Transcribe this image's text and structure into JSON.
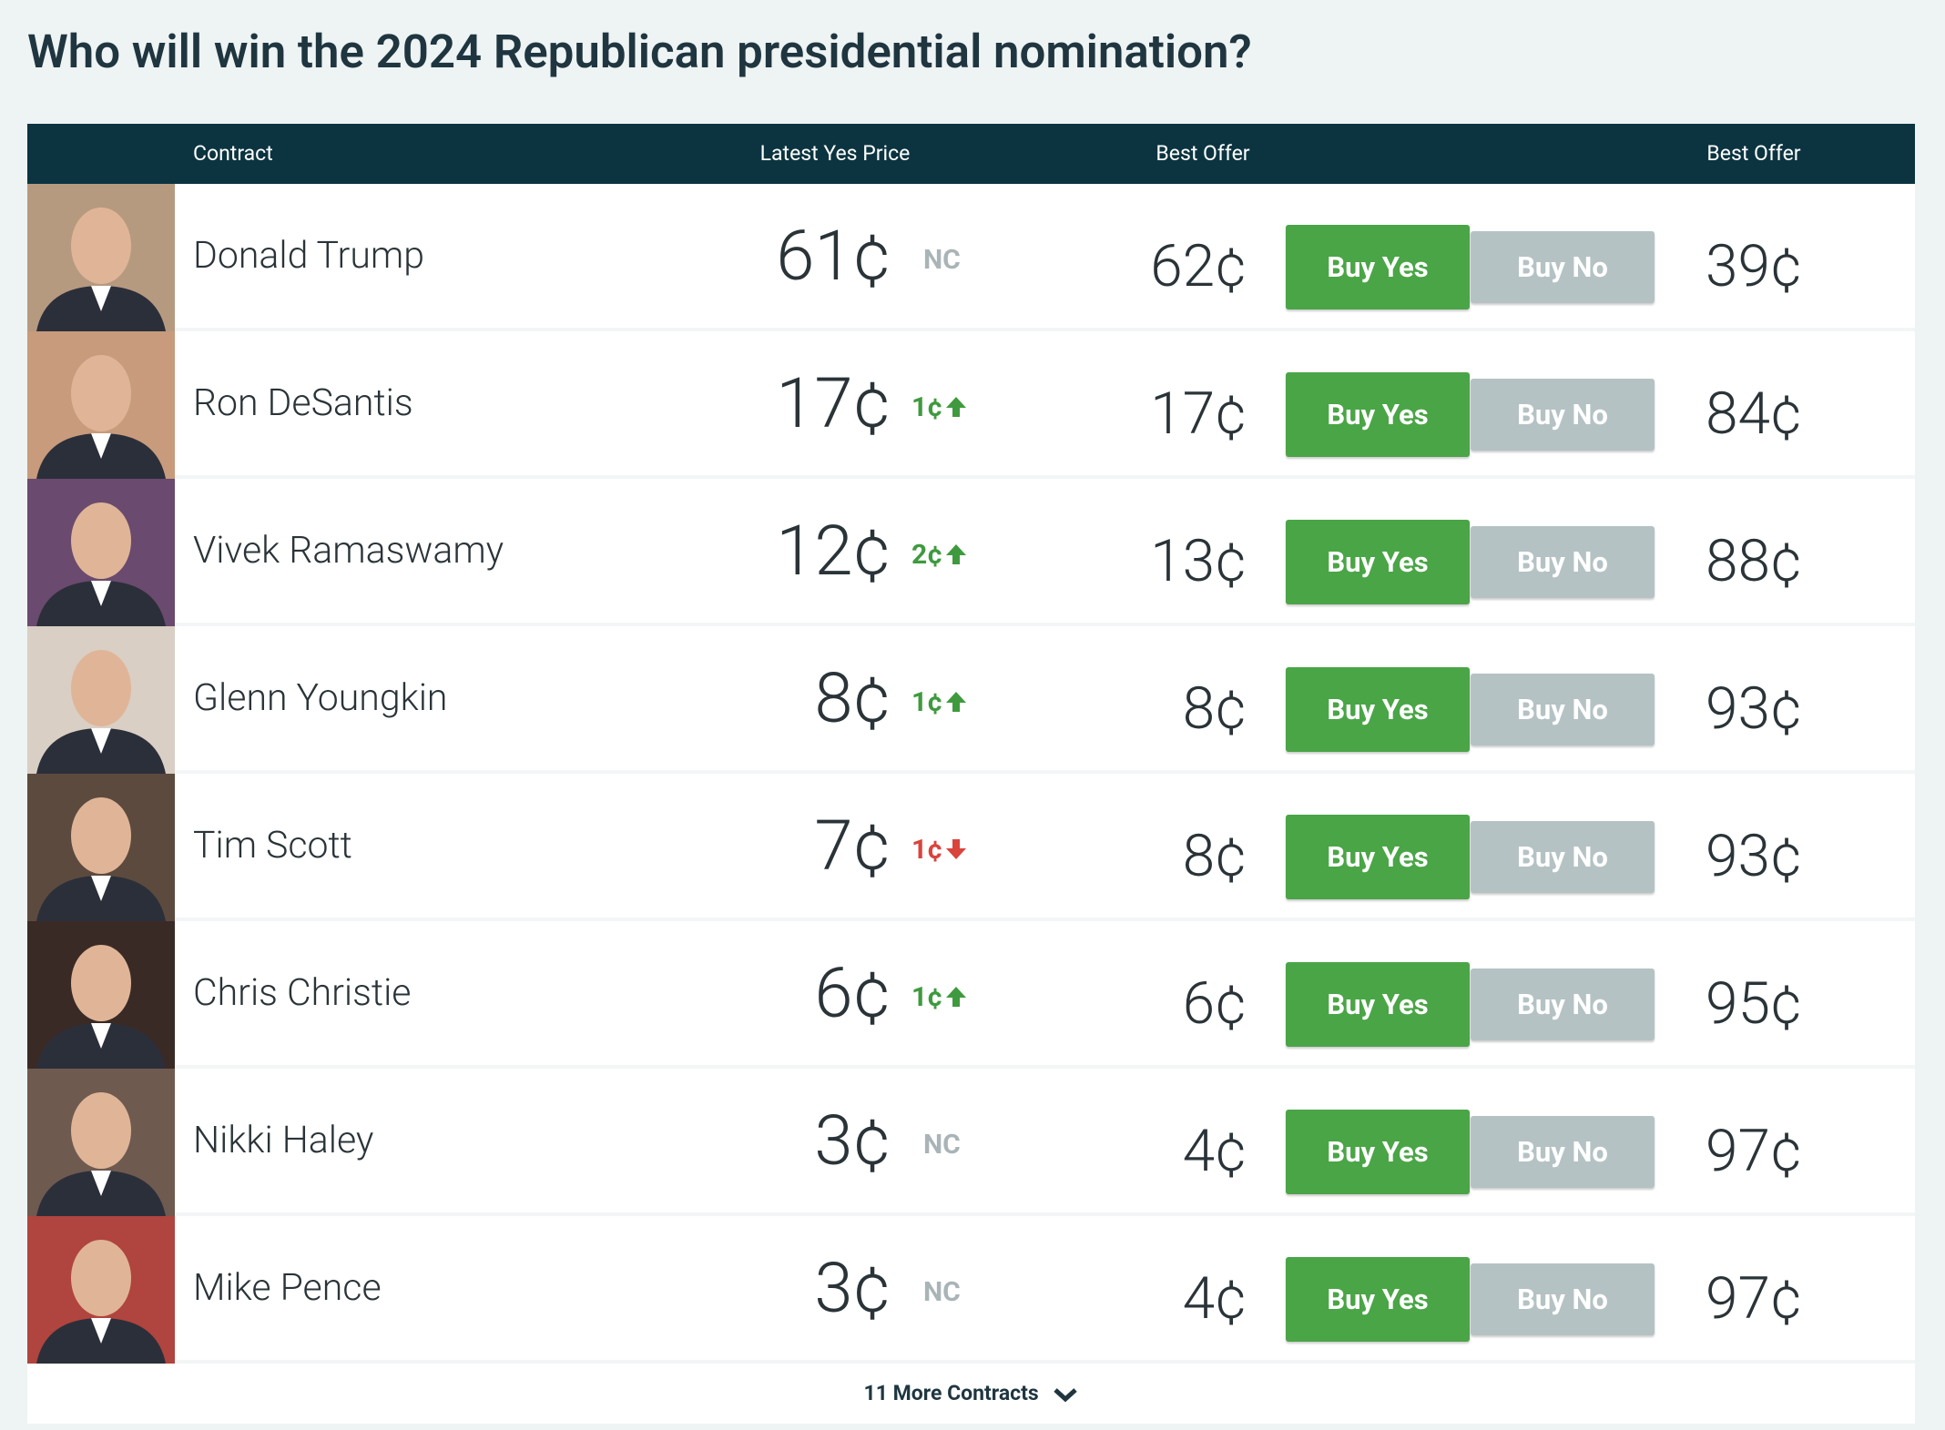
{
  "title": "Who will win the 2024 Republican presidential nomination?",
  "table": {
    "headers": [
      "Contract",
      "Latest Yes Price",
      "Best Offer",
      "Best Offer"
    ],
    "rows": [
      {
        "name": "Donald Trump",
        "latest": "61¢",
        "change": "NC",
        "offer_yes": "62¢",
        "buy_yes": "Buy Yes",
        "buy_no": "Buy No",
        "offer_no": "39¢"
      },
      {
        "name": "Ron DeSantis",
        "latest": "17¢",
        "change": "1¢",
        "direction": "up",
        "offer_yes": "17¢",
        "buy_yes": "Buy Yes",
        "buy_no": "Buy No",
        "offer_no": "84¢"
      },
      {
        "name": "Vivek Ramaswamy",
        "latest": "12¢",
        "change": "2¢",
        "direction": "up",
        "offer_yes": "13¢",
        "buy_yes": "Buy Yes",
        "buy_no": "Buy No",
        "offer_no": "88¢"
      },
      {
        "name": "Glenn Youngkin",
        "latest": "8¢",
        "change": "1¢",
        "direction": "up",
        "offer_yes": "8¢",
        "buy_yes": "Buy Yes",
        "buy_no": "Buy No",
        "offer_no": "93¢"
      },
      {
        "name": "Tim Scott",
        "latest": "7¢",
        "change": "1¢",
        "direction": "down",
        "offer_yes": "8¢",
        "buy_yes": "Buy Yes",
        "buy_no": "Buy No",
        "offer_no": "93¢"
      },
      {
        "name": "Chris Christie",
        "latest": "6¢",
        "change": "1¢",
        "direction": "up",
        "offer_yes": "6¢",
        "buy_yes": "Buy Yes",
        "buy_no": "Buy No",
        "offer_no": "95¢"
      },
      {
        "name": "Nikki Haley",
        "latest": "3¢",
        "change": "NC",
        "offer_yes": "4¢",
        "buy_yes": "Buy Yes",
        "buy_no": "Buy No",
        "offer_no": "97¢"
      },
      {
        "name": "Mike Pence",
        "latest": "3¢",
        "change": "NC",
        "offer_yes": "4¢",
        "buy_yes": "Buy Yes",
        "buy_no": "Buy No",
        "offer_no": "97¢"
      }
    ],
    "more": "11 More Contracts"
  }
}
